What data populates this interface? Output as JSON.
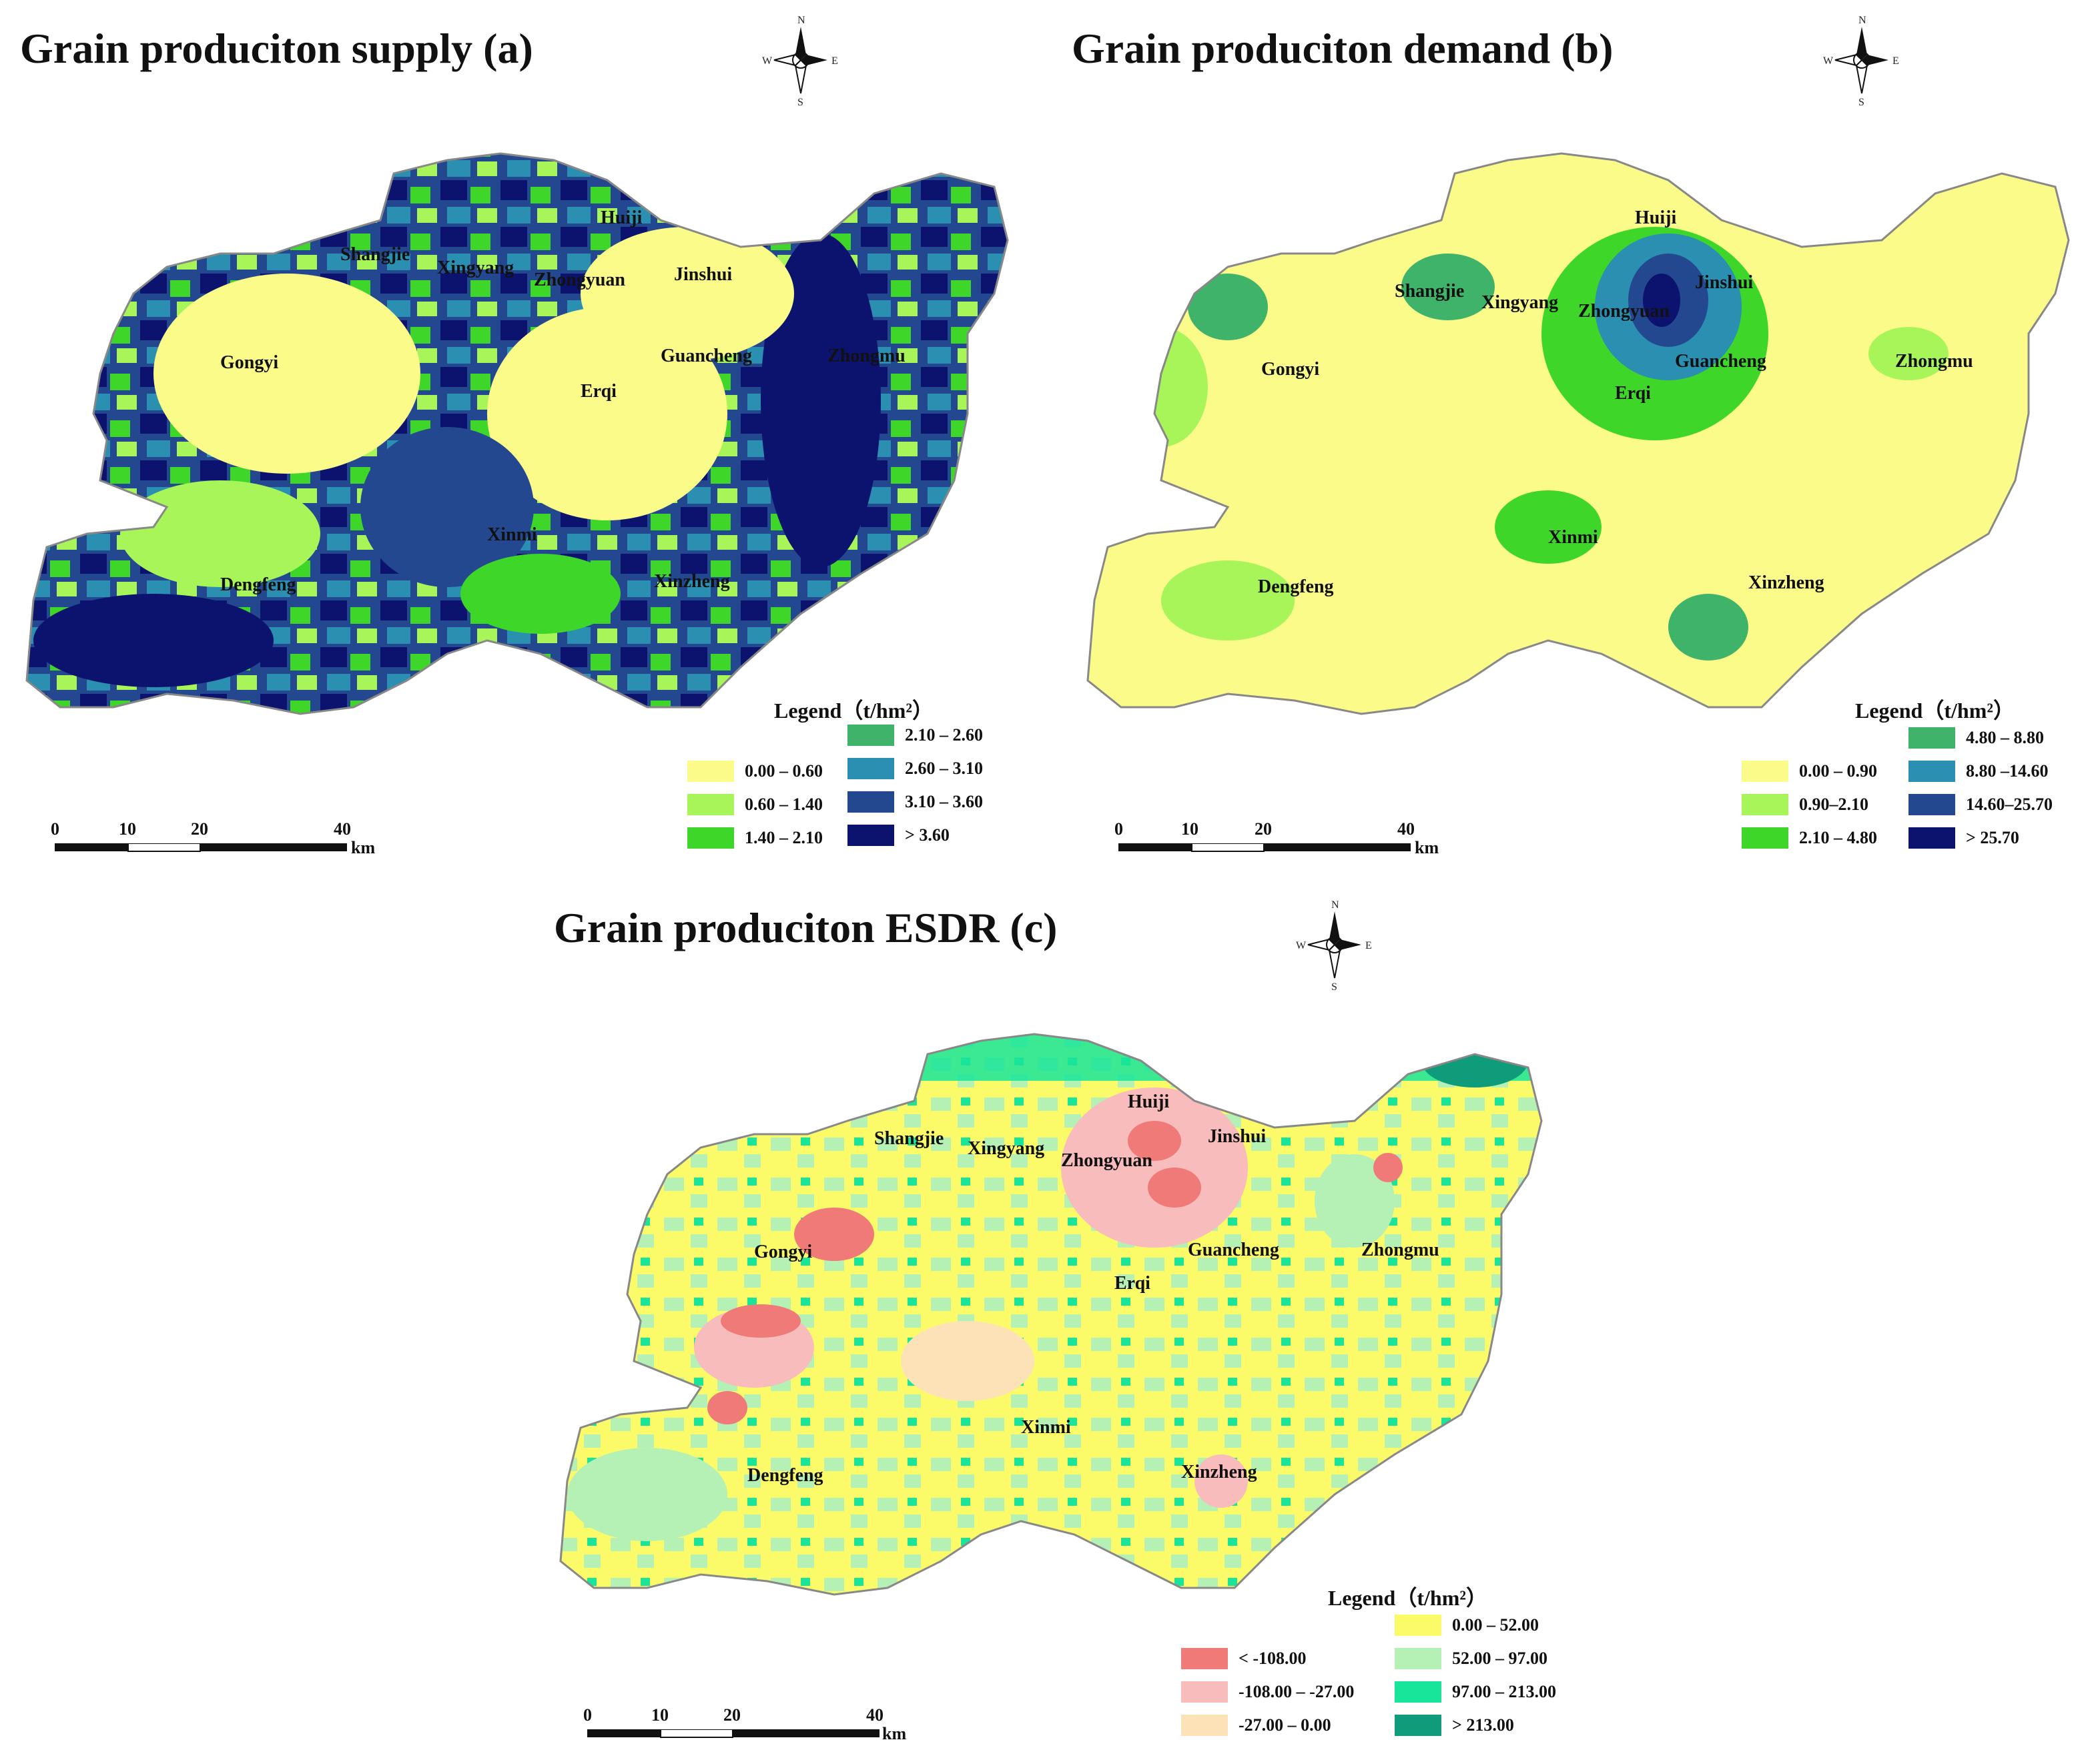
{
  "panels": [
    {
      "id": "a",
      "title": "Grain produciton supply  (a)",
      "legend_title": "Legend（t/hm²）",
      "legend": [
        {
          "label": "0.00 – 0.60",
          "color": "#fbfb8a"
        },
        {
          "label": "0.60 – 1.40",
          "color": "#a8f55a"
        },
        {
          "label": "1.40 – 2.10",
          "color": "#3fd62a"
        },
        {
          "label": "2.10 – 2.60",
          "color": "#3fb36a"
        },
        {
          "label": "2.60 – 3.10",
          "color": "#2a8fb0"
        },
        {
          "label": "3.10 – 3.60",
          "color": "#24488f"
        },
        {
          "label": "> 3.60",
          "color": "#0c136e"
        }
      ]
    },
    {
      "id": "b",
      "title": "Grain produciton demand  (b)",
      "legend_title": "Legend（t/hm²）",
      "legend": [
        {
          "label": "0.00 – 0.90",
          "color": "#fbfb8a"
        },
        {
          "label": "0.90–2.10",
          "color": "#a8f55a"
        },
        {
          "label": "2.10 – 4.80",
          "color": "#3fd62a"
        },
        {
          "label": "4.80 – 8.80",
          "color": "#3fb36a"
        },
        {
          "label": "8.80 –14.60",
          "color": "#2a8fb0"
        },
        {
          "label": "14.60–25.70",
          "color": "#24488f"
        },
        {
          "label": "> 25.70",
          "color": "#0c136e"
        }
      ]
    },
    {
      "id": "c",
      "title": "Grain produciton ESDR (c)",
      "legend_title": "Legend（t/hm²）",
      "legend": [
        {
          "label": "< -108.00",
          "color": "#f07a78"
        },
        {
          "label": "-108.00 – -27.00",
          "color": "#f8bcbc"
        },
        {
          "label": "-27.00 – 0.00",
          "color": "#fde2b8"
        },
        {
          "label": "0.00 – 52.00",
          "color": "#fbfb6a"
        },
        {
          "label": "52.00 – 97.00",
          "color": "#b5f0b4"
        },
        {
          "label": "97.00 – 213.00",
          "color": "#19e59a"
        },
        {
          "label": "> 213.00",
          "color": "#0e9c7a"
        }
      ]
    }
  ],
  "districts": [
    "Huiji",
    "Shangjie",
    "Xingyang",
    "Zhongyuan",
    "Jinshui",
    "Gongyi",
    "Guancheng",
    "Zhongmu",
    "Erqi",
    "Xinmi",
    "Dengfeng",
    "Xinzheng"
  ],
  "scale": {
    "ticks": [
      "0",
      "10",
      "20",
      "40"
    ],
    "unit": "km"
  },
  "compass": {
    "n": "N",
    "s": "S",
    "e": "E",
    "w": "W"
  }
}
